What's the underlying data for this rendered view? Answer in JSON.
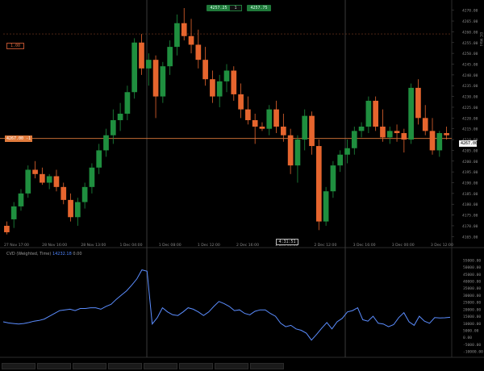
{
  "trade_panel": {
    "sell_price": "4257.25",
    "quantity": "1",
    "buy_price": "4257.75"
  },
  "level_tag": "1.00",
  "current_price_tag": "4267.00 -1",
  "right_price_tag": "4267.00",
  "cursor_time_tag": "4:31:51",
  "price_axis": {
    "labels": [
      "4270.00",
      "4265.00",
      "4260.00",
      "4255.00",
      "4250.00",
      "4245.00",
      "4240.00",
      "4235.00",
      "4230.00",
      "4225.00",
      "4220.00",
      "4215.00",
      "4210.00",
      "4205.00",
      "4200.00",
      "4195.00",
      "4190.00",
      "4185.00",
      "4180.00",
      "4175.00",
      "4170.00",
      "4165.00"
    ],
    "top_label": "EC Mini"
  },
  "time_axis": {
    "labels": [
      "27 Nov 17:00",
      "28 Nov 16:00",
      "28 Nov 13:00",
      "1 Dec 04:00",
      "1 Dec 08:00",
      "1 Dec 12:00",
      "2 Dec 16:00",
      "2 Dec 00:00",
      "2 Dec 12:00",
      "3 Dec 16:00",
      "3 Dec 00:00",
      "3 Dec 12:00"
    ]
  },
  "indicator": {
    "name": "CVD (Weighted, Time)",
    "value": "14232.18",
    "extra": "0.00",
    "axis_labels": [
      "55000.00",
      "50000.00",
      "45000.00",
      "40000.00",
      "35000.00",
      "30000.00",
      "25000.00",
      "20000.00",
      "15000.00",
      "10000.00",
      "5000.00",
      "0.00",
      "-5000.00",
      "-10000.00"
    ]
  },
  "colors": {
    "up": "#1f8f3f",
    "down": "#e6652e",
    "cvd_line": "#5b8dff",
    "accent": "#e07a3c"
  },
  "candles": [
    {
      "o": 4170.0,
      "h": 4172.0,
      "l": 4166.0,
      "c": 4167.0
    },
    {
      "o": 4173.0,
      "h": 4181.0,
      "l": 4169.0,
      "c": 4179.0
    },
    {
      "o": 4179.0,
      "h": 4187.0,
      "l": 4177.0,
      "c": 4185.0
    },
    {
      "o": 4185.0,
      "h": 4198.0,
      "l": 4183.0,
      "c": 4196.0
    },
    {
      "o": 4196.0,
      "h": 4200.0,
      "l": 4192.0,
      "c": 4194.0
    },
    {
      "o": 4194.0,
      "h": 4197.0,
      "l": 4189.0,
      "c": 4190.0
    },
    {
      "o": 4190.0,
      "h": 4194.0,
      "l": 4187.0,
      "c": 4193.0
    },
    {
      "o": 4193.0,
      "h": 4196.0,
      "l": 4186.0,
      "c": 4188.0
    },
    {
      "o": 4188.0,
      "h": 4190.0,
      "l": 4180.0,
      "c": 4182.0
    },
    {
      "o": 4182.0,
      "h": 4185.0,
      "l": 4172.0,
      "c": 4174.0
    },
    {
      "o": 4174.0,
      "h": 4183.0,
      "l": 4170.0,
      "c": 4181.0
    },
    {
      "o": 4181.0,
      "h": 4190.0,
      "l": 4178.0,
      "c": 4188.0
    },
    {
      "o": 4188.0,
      "h": 4199.0,
      "l": 4185.0,
      "c": 4197.0
    },
    {
      "o": 4197.0,
      "h": 4208.0,
      "l": 4194.0,
      "c": 4205.0
    },
    {
      "o": 4205.0,
      "h": 4215.0,
      "l": 4202.0,
      "c": 4212.0
    },
    {
      "o": 4212.0,
      "h": 4224.0,
      "l": 4208.0,
      "c": 4219.0
    },
    {
      "o": 4219.0,
      "h": 4227.0,
      "l": 4214.0,
      "c": 4222.0
    },
    {
      "o": 4222.0,
      "h": 4235.0,
      "l": 4219.0,
      "c": 4232.0
    },
    {
      "o": 4232.0,
      "h": 4257.0,
      "l": 4229.0,
      "c": 4255.0
    },
    {
      "o": 4255.0,
      "h": 4259.0,
      "l": 4240.0,
      "c": 4243.0
    },
    {
      "o": 4243.0,
      "h": 4250.0,
      "l": 4235.0,
      "c": 4247.0
    },
    {
      "o": 4247.0,
      "h": 4249.0,
      "l": 4220.0,
      "c": 4230.0
    },
    {
      "o": 4230.0,
      "h": 4246.0,
      "l": 4227.0,
      "c": 4244.0
    },
    {
      "o": 4244.0,
      "h": 4256.0,
      "l": 4240.0,
      "c": 4253.0
    },
    {
      "o": 4253.0,
      "h": 4268.0,
      "l": 4249.0,
      "c": 4264.0
    },
    {
      "o": 4264.0,
      "h": 4271.0,
      "l": 4256.0,
      "c": 4258.0
    },
    {
      "o": 4258.0,
      "h": 4266.0,
      "l": 4250.0,
      "c": 4254.0
    },
    {
      "o": 4254.0,
      "h": 4261.0,
      "l": 4243.0,
      "c": 4247.0
    },
    {
      "o": 4247.0,
      "h": 4253.0,
      "l": 4235.0,
      "c": 4238.0
    },
    {
      "o": 4238.0,
      "h": 4242.0,
      "l": 4227.0,
      "c": 4230.0
    },
    {
      "o": 4230.0,
      "h": 4240.0,
      "l": 4225.0,
      "c": 4237.0
    },
    {
      "o": 4237.0,
      "h": 4245.0,
      "l": 4232.0,
      "c": 4242.0
    },
    {
      "o": 4242.0,
      "h": 4244.0,
      "l": 4228.0,
      "c": 4231.0
    },
    {
      "o": 4231.0,
      "h": 4236.0,
      "l": 4220.0,
      "c": 4224.0
    },
    {
      "o": 4224.0,
      "h": 4230.0,
      "l": 4217.0,
      "c": 4219.0
    },
    {
      "o": 4219.0,
      "h": 4222.0,
      "l": 4208.0,
      "c": 4216.0
    },
    {
      "o": 4216.0,
      "h": 4218.0,
      "l": 4214.0,
      "c": 4215.0
    },
    {
      "o": 4215.0,
      "h": 4226.0,
      "l": 4212.0,
      "c": 4224.0
    },
    {
      "o": 4224.0,
      "h": 4228.0,
      "l": 4213.0,
      "c": 4216.0
    },
    {
      "o": 4216.0,
      "h": 4222.0,
      "l": 4209.0,
      "c": 4212.0
    },
    {
      "o": 4212.0,
      "h": 4215.0,
      "l": 4194.0,
      "c": 4198.0
    },
    {
      "o": 4198.0,
      "h": 4212.0,
      "l": 4190.0,
      "c": 4210.0
    },
    {
      "o": 4210.0,
      "h": 4224.0,
      "l": 4205.0,
      "c": 4221.0
    },
    {
      "o": 4221.0,
      "h": 4223.0,
      "l": 4203.0,
      "c": 4207.0
    },
    {
      "o": 4207.0,
      "h": 4210.0,
      "l": 4168.0,
      "c": 4172.0
    },
    {
      "o": 4172.0,
      "h": 4188.0,
      "l": 4170.0,
      "c": 4186.0
    },
    {
      "o": 4186.0,
      "h": 4200.0,
      "l": 4183.0,
      "c": 4198.0
    },
    {
      "o": 4198.0,
      "h": 4205.0,
      "l": 4195.0,
      "c": 4203.0
    },
    {
      "o": 4203.0,
      "h": 4210.0,
      "l": 4199.0,
      "c": 4206.0
    },
    {
      "o": 4206.0,
      "h": 4216.0,
      "l": 4203.0,
      "c": 4214.0
    },
    {
      "o": 4214.0,
      "h": 4218.0,
      "l": 4211.0,
      "c": 4216.0
    },
    {
      "o": 4216.0,
      "h": 4230.0,
      "l": 4213.0,
      "c": 4228.0
    },
    {
      "o": 4228.0,
      "h": 4230.0,
      "l": 4214.0,
      "c": 4216.0
    },
    {
      "o": 4216.0,
      "h": 4224.0,
      "l": 4209.0,
      "c": 4211.0
    },
    {
      "o": 4211.0,
      "h": 4216.0,
      "l": 4208.0,
      "c": 4214.0
    },
    {
      "o": 4214.0,
      "h": 4217.0,
      "l": 4209.0,
      "c": 4213.0
    },
    {
      "o": 4213.0,
      "h": 4215.0,
      "l": 4204.0,
      "c": 4210.0
    },
    {
      "o": 4210.0,
      "h": 4236.0,
      "l": 4208.0,
      "c": 4234.0
    },
    {
      "o": 4234.0,
      "h": 4238.0,
      "l": 4217.0,
      "c": 4220.0
    },
    {
      "o": 4220.0,
      "h": 4226.0,
      "l": 4212.0,
      "c": 4214.0
    },
    {
      "o": 4214.0,
      "h": 4220.0,
      "l": 4203.0,
      "c": 4205.0
    },
    {
      "o": 4205.0,
      "h": 4214.0,
      "l": 4202.0,
      "c": 4213.0
    },
    {
      "o": 4213.0,
      "h": 4216.0,
      "l": 4210.0,
      "c": 4212.0
    }
  ],
  "cvd": [
    11000,
    10200,
    9800,
    9500,
    9800,
    10500,
    11500,
    12000,
    13000,
    15000,
    17000,
    19000,
    19500,
    20000,
    19000,
    20500,
    20500,
    21000,
    21000,
    20000,
    22000,
    23500,
    27000,
    30000,
    33000,
    37000,
    41500,
    48000,
    47000,
    9500,
    14000,
    21000,
    18000,
    16000,
    15500,
    18000,
    21000,
    20000,
    18000,
    15500,
    18000,
    22000,
    25500,
    24000,
    22000,
    19000,
    19500,
    17000,
    16000,
    18500,
    19500,
    19500,
    17000,
    15000,
    10000,
    7500,
    8500,
    6000,
    5000,
    3000,
    -2000,
    2000,
    6500,
    10500,
    6000,
    11000,
    13500,
    18000,
    19000,
    21000,
    12500,
    11500,
    15000,
    10000,
    9500,
    7500,
    9000,
    14000,
    17500,
    11000,
    8500,
    15000,
    11500,
    10000,
    14000,
    13800,
    13900,
    14232
  ]
}
